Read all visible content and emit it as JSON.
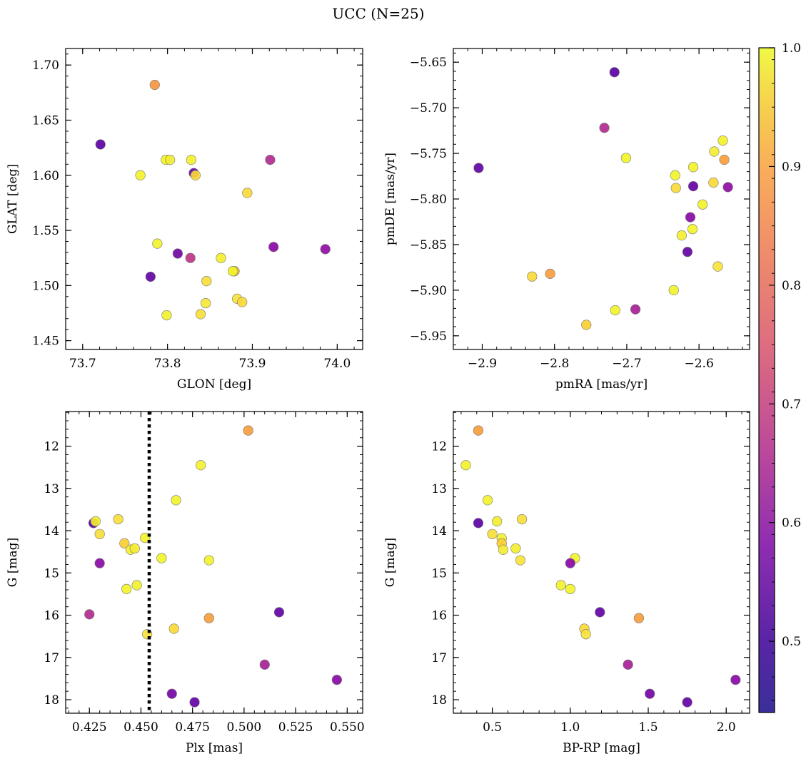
{
  "figure": {
    "title": "UCC (N=25)"
  },
  "colors": {
    "colormap": "plasma",
    "marker_edge": "#777777",
    "vline": "#000000"
  },
  "colorbar": {
    "range": [
      0.44,
      1.0
    ],
    "ticks": [
      0.5,
      0.6,
      0.7,
      0.8,
      0.9,
      1.0
    ],
    "tick_labels": [
      "0.5",
      "0.6",
      "0.7",
      "0.8",
      "0.9",
      "1.0"
    ]
  },
  "chart_data": [
    {
      "type": "scatter",
      "xlabel": "GLON [deg]",
      "ylabel": "GLAT [deg]",
      "xlim": [
        73.68,
        74.03
      ],
      "ylim": [
        1.442,
        1.715
      ],
      "xticks": [
        73.7,
        73.8,
        73.9,
        74.0
      ],
      "xtick_labels": [
        "73.7",
        "73.8",
        "73.9",
        "74.0"
      ],
      "yticks": [
        1.45,
        1.5,
        1.55,
        1.6,
        1.65,
        1.7
      ],
      "ytick_labels": [
        "1.45",
        "1.50",
        "1.55",
        "1.60",
        "1.65",
        "1.70"
      ],
      "points": [
        {
          "x": 73.721,
          "y": 1.628,
          "c": 0.47
        },
        {
          "x": 73.785,
          "y": 1.682,
          "c": 0.79
        },
        {
          "x": 73.768,
          "y": 1.6,
          "c": 0.97
        },
        {
          "x": 73.798,
          "y": 1.614,
          "c": 0.98
        },
        {
          "x": 73.803,
          "y": 1.614,
          "c": 0.95
        },
        {
          "x": 73.828,
          "y": 1.614,
          "c": 0.96
        },
        {
          "x": 73.831,
          "y": 1.602,
          "c": 0.48
        },
        {
          "x": 73.833,
          "y": 1.6,
          "c": 0.9
        },
        {
          "x": 73.921,
          "y": 1.614,
          "c": 0.6
        },
        {
          "x": 73.894,
          "y": 1.584,
          "c": 0.9
        },
        {
          "x": 73.788,
          "y": 1.538,
          "c": 0.97
        },
        {
          "x": 73.812,
          "y": 1.529,
          "c": 0.5
        },
        {
          "x": 73.827,
          "y": 1.525,
          "c": 0.62
        },
        {
          "x": 73.863,
          "y": 1.525,
          "c": 0.96
        },
        {
          "x": 73.925,
          "y": 1.535,
          "c": 0.53
        },
        {
          "x": 73.986,
          "y": 1.533,
          "c": 0.54
        },
        {
          "x": 73.78,
          "y": 1.508,
          "c": 0.48
        },
        {
          "x": 73.846,
          "y": 1.504,
          "c": 0.91
        },
        {
          "x": 73.879,
          "y": 1.513,
          "c": 0.83
        },
        {
          "x": 73.877,
          "y": 1.513,
          "c": 0.98
        },
        {
          "x": 73.845,
          "y": 1.484,
          "c": 0.93
        },
        {
          "x": 73.882,
          "y": 1.488,
          "c": 0.92
        },
        {
          "x": 73.888,
          "y": 1.485,
          "c": 0.9
        },
        {
          "x": 73.799,
          "y": 1.473,
          "c": 0.97
        },
        {
          "x": 73.839,
          "y": 1.474,
          "c": 0.91
        }
      ]
    },
    {
      "type": "scatter",
      "xlabel": "pmRA [mas/yr]",
      "ylabel": "pmDE [mas/yr]",
      "xlim": [
        -2.94,
        -2.53
      ],
      "ylim": [
        -5.965,
        -5.635
      ],
      "xticks": [
        -2.9,
        -2.8,
        -2.7,
        -2.6
      ],
      "xtick_labels": [
        "−2.9",
        "−2.8",
        "−2.7",
        "−2.6"
      ],
      "yticks": [
        -5.95,
        -5.9,
        -5.85,
        -5.8,
        -5.75,
        -5.7,
        -5.65
      ],
      "ytick_labels": [
        "−5.95",
        "−5.90",
        "−5.85",
        "−5.80",
        "−5.75",
        "−5.70",
        "−5.65"
      ],
      "points": [
        {
          "x": -2.717,
          "y": -5.661,
          "c": 0.47
        },
        {
          "x": -2.731,
          "y": -5.722,
          "c": 0.6
        },
        {
          "x": -2.701,
          "y": -5.755,
          "c": 0.98
        },
        {
          "x": -2.905,
          "y": -5.766,
          "c": 0.48
        },
        {
          "x": -2.567,
          "y": -5.736,
          "c": 0.97
        },
        {
          "x": -2.579,
          "y": -5.748,
          "c": 0.95
        },
        {
          "x": -2.565,
          "y": -5.757,
          "c": 0.8
        },
        {
          "x": -2.608,
          "y": -5.765,
          "c": 0.97
        },
        {
          "x": -2.633,
          "y": -5.774,
          "c": 0.98
        },
        {
          "x": -2.632,
          "y": -5.788,
          "c": 0.9
        },
        {
          "x": -2.608,
          "y": -5.786,
          "c": 0.48
        },
        {
          "x": -2.58,
          "y": -5.782,
          "c": 0.9
        },
        {
          "x": -2.56,
          "y": -5.787,
          "c": 0.54
        },
        {
          "x": -2.595,
          "y": -5.806,
          "c": 0.97
        },
        {
          "x": -2.612,
          "y": -5.82,
          "c": 0.53
        },
        {
          "x": -2.624,
          "y": -5.84,
          "c": 0.96
        },
        {
          "x": -2.609,
          "y": -5.833,
          "c": 0.98
        },
        {
          "x": -2.616,
          "y": -5.858,
          "c": 0.48
        },
        {
          "x": -2.574,
          "y": -5.874,
          "c": 0.92
        },
        {
          "x": -2.831,
          "y": -5.885,
          "c": 0.9
        },
        {
          "x": -2.806,
          "y": -5.882,
          "c": 0.8
        },
        {
          "x": -2.635,
          "y": -5.9,
          "c": 0.97
        },
        {
          "x": -2.716,
          "y": -5.922,
          "c": 0.98
        },
        {
          "x": -2.688,
          "y": -5.921,
          "c": 0.58
        },
        {
          "x": -2.756,
          "y": -5.938,
          "c": 0.88
        }
      ]
    },
    {
      "type": "scatter",
      "xlabel": "Plx [mas]",
      "ylabel": "G [mag]",
      "xlim": [
        0.4135,
        0.5575
      ],
      "ylim": [
        18.32,
        11.18
      ],
      "vline_x": 0.454,
      "xticks": [
        0.425,
        0.45,
        0.475,
        0.5,
        0.525,
        0.55
      ],
      "xtick_labels": [
        "0.425",
        "0.450",
        "0.475",
        "0.500",
        "0.525",
        "0.550"
      ],
      "yticks": [
        12,
        13,
        14,
        15,
        16,
        17,
        18
      ],
      "ytick_labels": [
        "12",
        "13",
        "14",
        "15",
        "16",
        "17",
        "18"
      ],
      "points": [
        {
          "x": 0.502,
          "y": 11.63,
          "c": 0.8
        },
        {
          "x": 0.479,
          "y": 12.45,
          "c": 0.97
        },
        {
          "x": 0.467,
          "y": 13.28,
          "c": 0.97
        },
        {
          "x": 0.427,
          "y": 13.82,
          "c": 0.47
        },
        {
          "x": 0.428,
          "y": 13.78,
          "c": 0.96
        },
        {
          "x": 0.439,
          "y": 13.73,
          "c": 0.91
        },
        {
          "x": 0.43,
          "y": 14.08,
          "c": 0.91
        },
        {
          "x": 0.442,
          "y": 14.3,
          "c": 0.88
        },
        {
          "x": 0.445,
          "y": 14.45,
          "c": 0.96
        },
        {
          "x": 0.447,
          "y": 14.42,
          "c": 0.95
        },
        {
          "x": 0.452,
          "y": 14.17,
          "c": 0.97
        },
        {
          "x": 0.46,
          "y": 14.65,
          "c": 0.98
        },
        {
          "x": 0.483,
          "y": 14.7,
          "c": 0.97
        },
        {
          "x": 0.43,
          "y": 14.77,
          "c": 0.53
        },
        {
          "x": 0.443,
          "y": 15.38,
          "c": 0.98
        },
        {
          "x": 0.448,
          "y": 15.29,
          "c": 0.97
        },
        {
          "x": 0.425,
          "y": 15.98,
          "c": 0.6
        },
        {
          "x": 0.517,
          "y": 15.93,
          "c": 0.48
        },
        {
          "x": 0.483,
          "y": 16.07,
          "c": 0.8
        },
        {
          "x": 0.466,
          "y": 16.32,
          "c": 0.9
        },
        {
          "x": 0.453,
          "y": 16.45,
          "c": 0.92
        },
        {
          "x": 0.51,
          "y": 17.17,
          "c": 0.58
        },
        {
          "x": 0.545,
          "y": 17.53,
          "c": 0.53
        },
        {
          "x": 0.465,
          "y": 17.86,
          "c": 0.5
        },
        {
          "x": 0.476,
          "y": 18.06,
          "c": 0.48
        }
      ]
    },
    {
      "type": "scatter",
      "xlabel": "BP-RP [mag]",
      "ylabel": "G [mag]",
      "xlim": [
        0.25,
        2.15
      ],
      "ylim": [
        18.32,
        11.18
      ],
      "xticks": [
        0.5,
        1.0,
        1.5,
        2.0
      ],
      "xtick_labels": [
        "0.5",
        "1.0",
        "1.5",
        "2.0"
      ],
      "yticks": [
        12,
        13,
        14,
        15,
        16,
        17,
        18
      ],
      "ytick_labels": [
        "12",
        "13",
        "14",
        "15",
        "16",
        "17",
        "18"
      ],
      "points": [
        {
          "x": 0.41,
          "y": 11.63,
          "c": 0.8
        },
        {
          "x": 0.33,
          "y": 12.45,
          "c": 0.97
        },
        {
          "x": 0.47,
          "y": 13.28,
          "c": 0.97
        },
        {
          "x": 0.41,
          "y": 13.82,
          "c": 0.47
        },
        {
          "x": 0.53,
          "y": 13.78,
          "c": 0.96
        },
        {
          "x": 0.69,
          "y": 13.73,
          "c": 0.91
        },
        {
          "x": 0.5,
          "y": 14.08,
          "c": 0.91
        },
        {
          "x": 0.56,
          "y": 14.18,
          "c": 0.97
        },
        {
          "x": 0.56,
          "y": 14.3,
          "c": 0.88
        },
        {
          "x": 0.57,
          "y": 14.45,
          "c": 0.95
        },
        {
          "x": 0.65,
          "y": 14.42,
          "c": 0.96
        },
        {
          "x": 1.03,
          "y": 14.65,
          "c": 0.98
        },
        {
          "x": 0.68,
          "y": 14.7,
          "c": 0.92
        },
        {
          "x": 1.0,
          "y": 14.77,
          "c": 0.53
        },
        {
          "x": 0.94,
          "y": 15.29,
          "c": 0.97
        },
        {
          "x": 1.0,
          "y": 15.38,
          "c": 0.98
        },
        {
          "x": 1.19,
          "y": 15.93,
          "c": 0.48
        },
        {
          "x": 1.44,
          "y": 16.07,
          "c": 0.8
        },
        {
          "x": 1.09,
          "y": 16.32,
          "c": 0.9
        },
        {
          "x": 1.1,
          "y": 16.45,
          "c": 0.92
        },
        {
          "x": 1.37,
          "y": 17.17,
          "c": 0.58
        },
        {
          "x": 2.06,
          "y": 17.53,
          "c": 0.53
        },
        {
          "x": 1.51,
          "y": 17.86,
          "c": 0.5
        },
        {
          "x": 1.75,
          "y": 18.06,
          "c": 0.48
        }
      ]
    }
  ]
}
